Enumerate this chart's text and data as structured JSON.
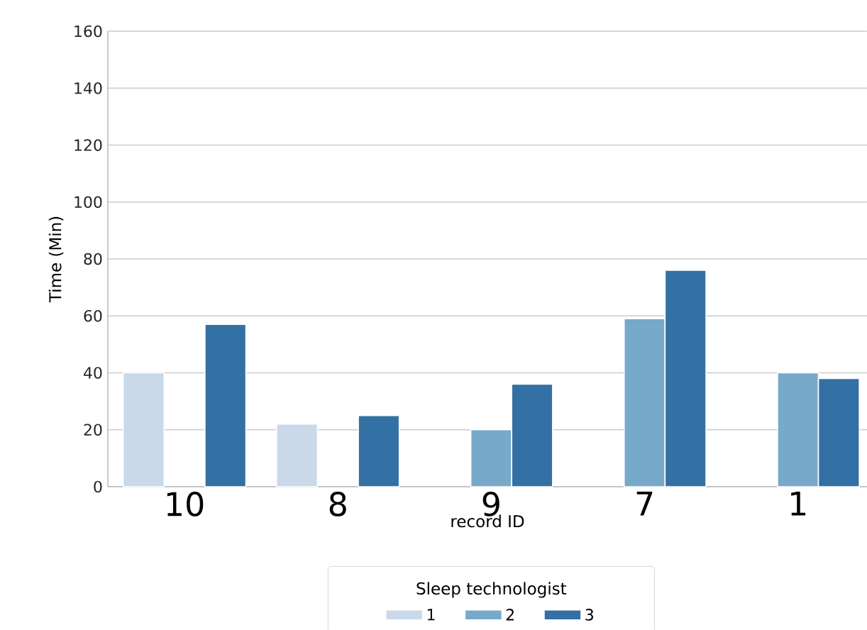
{
  "chart_data": {
    "type": "bar",
    "xlabel": "record ID",
    "ylabel": "Time (Min)",
    "legend_title": "Sleep technologist",
    "categories": [
      "10",
      "8",
      "9",
      "7",
      "1"
    ],
    "series": [
      {
        "name": "1",
        "color": "#c9d9e9",
        "values": [
          40,
          22,
          null,
          null,
          null
        ]
      },
      {
        "name": "2",
        "color": "#77a9c9",
        "values": [
          null,
          null,
          20,
          59,
          40
        ]
      },
      {
        "name": "3",
        "color": "#3370a3",
        "values": [
          57,
          25,
          36,
          76,
          38
        ]
      }
    ],
    "ylim": [
      0,
      160
    ],
    "yticks": [
      0,
      20,
      40,
      60,
      80,
      100,
      120,
      140,
      160
    ],
    "grid": "y",
    "legend": "bottom"
  }
}
